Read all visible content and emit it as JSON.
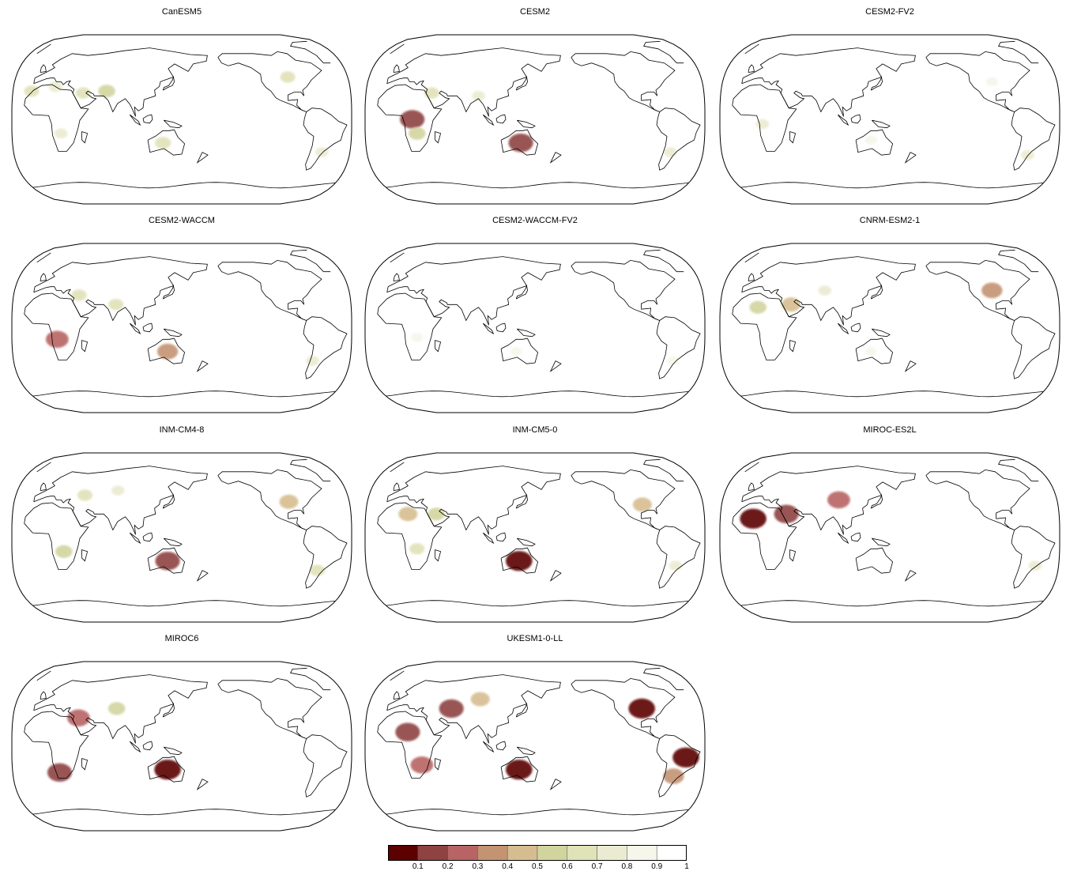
{
  "panels": [
    {
      "title": "CanESM5",
      "anomalies": [
        {
          "lon": -10,
          "lat": 30,
          "value": 0.7
        },
        {
          "lon": 15,
          "lat": 35,
          "value": 0.75
        },
        {
          "lon": 45,
          "lat": 28,
          "value": 0.7
        },
        {
          "lon": 70,
          "lat": 30,
          "value": 0.6
        },
        {
          "lon": 130,
          "lat": -25,
          "value": 0.65
        },
        {
          "lon": 22,
          "lat": -15,
          "value": 0.8
        },
        {
          "lon": -95,
          "lat": 45,
          "value": 0.7
        },
        {
          "lon": -60,
          "lat": -35,
          "value": 0.8
        }
      ]
    },
    {
      "title": "CESM2",
      "anomalies": [
        {
          "lon": 20,
          "lat": 0,
          "value": 0.2
        },
        {
          "lon": 135,
          "lat": -25,
          "value": 0.2
        },
        {
          "lon": 40,
          "lat": 28,
          "value": 0.7
        },
        {
          "lon": 25,
          "lat": -15,
          "value": 0.6
        },
        {
          "lon": 90,
          "lat": 25,
          "value": 0.8
        },
        {
          "lon": -65,
          "lat": -35,
          "value": 0.8
        }
      ]
    },
    {
      "title": "CESM2-FV2",
      "anomalies": [
        {
          "lon": 15,
          "lat": -5,
          "value": 0.8
        },
        {
          "lon": 130,
          "lat": -22,
          "value": 0.85
        },
        {
          "lon": -62,
          "lat": -38,
          "value": 0.8
        },
        {
          "lon": -100,
          "lat": 40,
          "value": 0.85
        }
      ]
    },
    {
      "title": "CESM2-WACCM",
      "anomalies": [
        {
          "lon": 18,
          "lat": -12,
          "value": 0.3
        },
        {
          "lon": 135,
          "lat": -25,
          "value": 0.4
        },
        {
          "lon": 40,
          "lat": 35,
          "value": 0.7
        },
        {
          "lon": 80,
          "lat": 25,
          "value": 0.7
        },
        {
          "lon": -70,
          "lat": -35,
          "value": 0.8
        }
      ]
    },
    {
      "title": "CESM2-WACCM-FV2",
      "anomalies": [
        {
          "lon": 25,
          "lat": -10,
          "value": 0.85
        },
        {
          "lon": -62,
          "lat": -35,
          "value": 0.85
        },
        {
          "lon": 130,
          "lat": -25,
          "value": 0.9
        }
      ]
    },
    {
      "title": "CNRM-ESM2-1",
      "anomalies": [
        {
          "lon": 10,
          "lat": 22,
          "value": 0.6
        },
        {
          "lon": 45,
          "lat": 25,
          "value": 0.5
        },
        {
          "lon": 80,
          "lat": 40,
          "value": 0.8
        },
        {
          "lon": -100,
          "lat": 40,
          "value": 0.4
        },
        {
          "lon": 130,
          "lat": -25,
          "value": 0.9
        }
      ]
    },
    {
      "title": "INM-CM4-8",
      "anomalies": [
        {
          "lon": 135,
          "lat": -25,
          "value": 0.2
        },
        {
          "lon": -95,
          "lat": 38,
          "value": 0.5
        },
        {
          "lon": 45,
          "lat": 45,
          "value": 0.7
        },
        {
          "lon": 25,
          "lat": -15,
          "value": 0.6
        },
        {
          "lon": 80,
          "lat": 50,
          "value": 0.8
        },
        {
          "lon": -65,
          "lat": -35,
          "value": 0.7
        }
      ]
    },
    {
      "title": "INM-CM5-0",
      "anomalies": [
        {
          "lon": 133,
          "lat": -25,
          "value": 0.1
        },
        {
          "lon": 15,
          "lat": 25,
          "value": 0.5
        },
        {
          "lon": 45,
          "lat": 25,
          "value": 0.6
        },
        {
          "lon": -95,
          "lat": 35,
          "value": 0.5
        },
        {
          "lon": 25,
          "lat": -12,
          "value": 0.7
        },
        {
          "lon": -60,
          "lat": -30,
          "value": 0.8
        }
      ]
    },
    {
      "title": "MIROC-ES2L",
      "anomalies": [
        {
          "lon": 5,
          "lat": 20,
          "value": 0.1
        },
        {
          "lon": 40,
          "lat": 25,
          "value": 0.2
        },
        {
          "lon": 95,
          "lat": 40,
          "value": 0.3
        },
        {
          "lon": -55,
          "lat": -30,
          "value": 0.8
        }
      ]
    },
    {
      "title": "MIROC6",
      "anomalies": [
        {
          "lon": 135,
          "lat": -25,
          "value": 0.1
        },
        {
          "lon": 20,
          "lat": -28,
          "value": 0.2
        },
        {
          "lon": 40,
          "lat": 30,
          "value": 0.3
        },
        {
          "lon": 80,
          "lat": 40,
          "value": 0.6
        }
      ]
    },
    {
      "title": "UKESM1-0-LL",
      "anomalies": [
        {
          "lon": 133,
          "lat": -25,
          "value": 0.1
        },
        {
          "lon": -95,
          "lat": 40,
          "value": 0.1
        },
        {
          "lon": -50,
          "lat": -12,
          "value": 0.1
        },
        {
          "lon": 15,
          "lat": 15,
          "value": 0.2
        },
        {
          "lon": 60,
          "lat": 40,
          "value": 0.2
        },
        {
          "lon": 30,
          "lat": -20,
          "value": 0.3
        },
        {
          "lon": -62,
          "lat": -32,
          "value": 0.4
        },
        {
          "lon": 90,
          "lat": 50,
          "value": 0.5
        }
      ]
    }
  ],
  "colorbar": {
    "colors": [
      "#5c0000",
      "#8e4242",
      "#b86464",
      "#c49372",
      "#d6bd8f",
      "#d2d49e",
      "#e0e2b8",
      "#ebebd2",
      "#f6f6ea",
      "#ffffff"
    ],
    "labels": [
      "0.1",
      "0.2",
      "0.3",
      "0.4",
      "0.5",
      "0.6",
      "0.7",
      "0.8",
      "0.9",
      "1"
    ]
  }
}
